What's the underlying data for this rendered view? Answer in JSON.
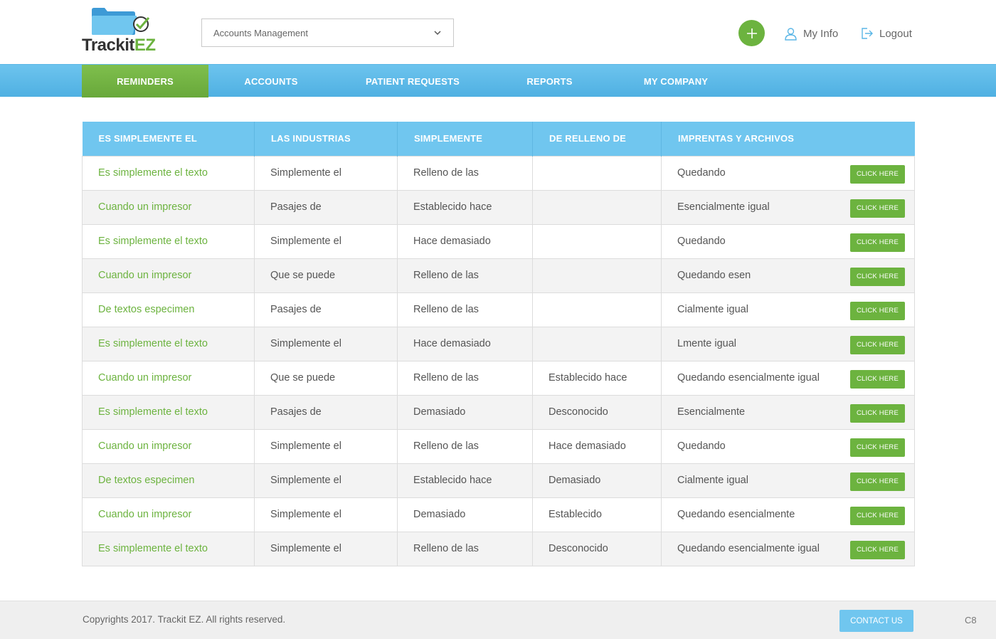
{
  "brand": {
    "logo_part1": "Trackit",
    "logo_part2": "EZ",
    "color_green": "#6cb33f",
    "color_blue": "#70c6ef"
  },
  "header": {
    "account_select_value": "Accounts Management",
    "my_info_label": "My Info",
    "logout_label": "Logout"
  },
  "nav": {
    "items": [
      {
        "label": "REMINDERS",
        "active": true
      },
      {
        "label": "ACCOUNTS",
        "active": false
      },
      {
        "label": "PATIENT REQUESTS",
        "active": false
      },
      {
        "label": "REPORTS",
        "active": false
      },
      {
        "label": "MY COMPANY",
        "active": false
      }
    ]
  },
  "table": {
    "columns": [
      "ES SIMPLEMENTE EL",
      "LAS INDUSTRIAS",
      "SIMPLEMENTE",
      "DE RELLENO DE",
      "IMPRENTAS Y ARCHIVOS"
    ],
    "button_label": "CLICK HERE",
    "rows": [
      [
        "Es simplemente el texto",
        "Simplemente el",
        "Relleno de las",
        "",
        "Quedando"
      ],
      [
        "Cuando un impresor",
        "Pasajes de",
        "Establecido hace",
        "",
        "Esencialmente igual"
      ],
      [
        "Es simplemente el texto",
        "Simplemente el",
        "Hace demasiado",
        "",
        "Quedando"
      ],
      [
        "Cuando un impresor",
        "Que se puede",
        "Relleno de las",
        "",
        "Quedando esen"
      ],
      [
        "De textos especimen",
        "Pasajes de",
        "Relleno de las",
        "",
        "Cialmente igual"
      ],
      [
        "Es simplemente el texto",
        "Simplemente el",
        "Hace demasiado",
        "",
        "Lmente igual"
      ],
      [
        "Cuando un impresor",
        "Que se puede",
        "Relleno de las",
        "Establecido hace",
        "Quedando esencialmente igual"
      ],
      [
        "Es simplemente el texto",
        "Pasajes de",
        "Demasiado",
        "Desconocido",
        "Esencialmente"
      ],
      [
        "Cuando un impresor",
        "Simplemente el",
        "Relleno de las",
        "Hace demasiado",
        "Quedando"
      ],
      [
        "De textos especimen",
        "Simplemente el",
        "Establecido hace",
        "Demasiado",
        "Cialmente igual"
      ],
      [
        "Cuando un impresor",
        "Simplemente el",
        "Demasiado",
        "Establecido",
        "Quedando esencialmente"
      ],
      [
        "Es simplemente el texto",
        "Simplemente el",
        "Relleno de las",
        "Desconocido",
        "Quedando esencialmente igual"
      ]
    ]
  },
  "footer": {
    "copyright": "Copyrights 2017. Trackit EZ. All rights reserved.",
    "contact_label": "CONTACT US",
    "code": "C8"
  }
}
